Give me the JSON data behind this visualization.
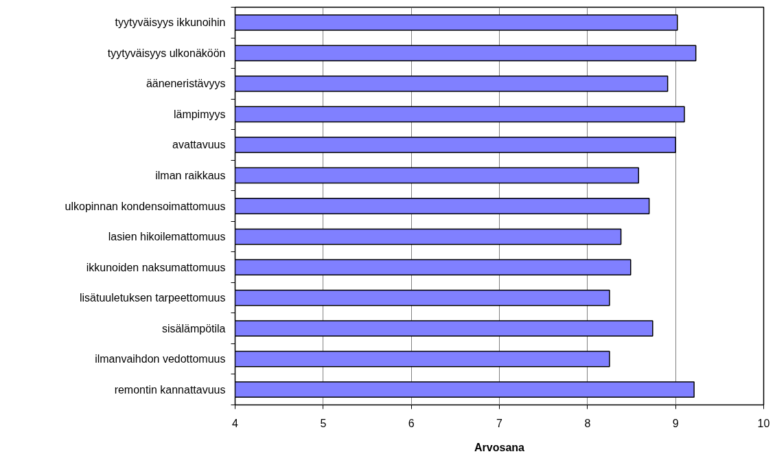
{
  "chart_data": {
    "type": "bar",
    "orientation": "horizontal",
    "xlabel": "Arvosana",
    "categories": [
      "tyytyväisyys ikkunoihin",
      "tyytyväisyys ulkonäköön",
      "ääneneristävyys",
      "lämpimyys",
      "avattavuus",
      "ilman raikkaus",
      "ulkopinnan kondensoimattomuus",
      "lasien hikoilemattomuus",
      "ikkunoiden naksumattomuus",
      "lisätuuletuksen tarpeettomuus",
      "sisälämpötila",
      "ilmanvaihdon vedottomuus",
      "remontin kannattavuus"
    ],
    "values": [
      9.02,
      9.23,
      8.91,
      9.1,
      9.0,
      8.58,
      8.7,
      8.38,
      8.49,
      8.25,
      8.74,
      8.25,
      9.21
    ],
    "color": "#8080ff",
    "xlim": [
      4,
      10
    ],
    "xticks": [
      4,
      5,
      6,
      7,
      8,
      9,
      10
    ],
    "grid": "x"
  }
}
